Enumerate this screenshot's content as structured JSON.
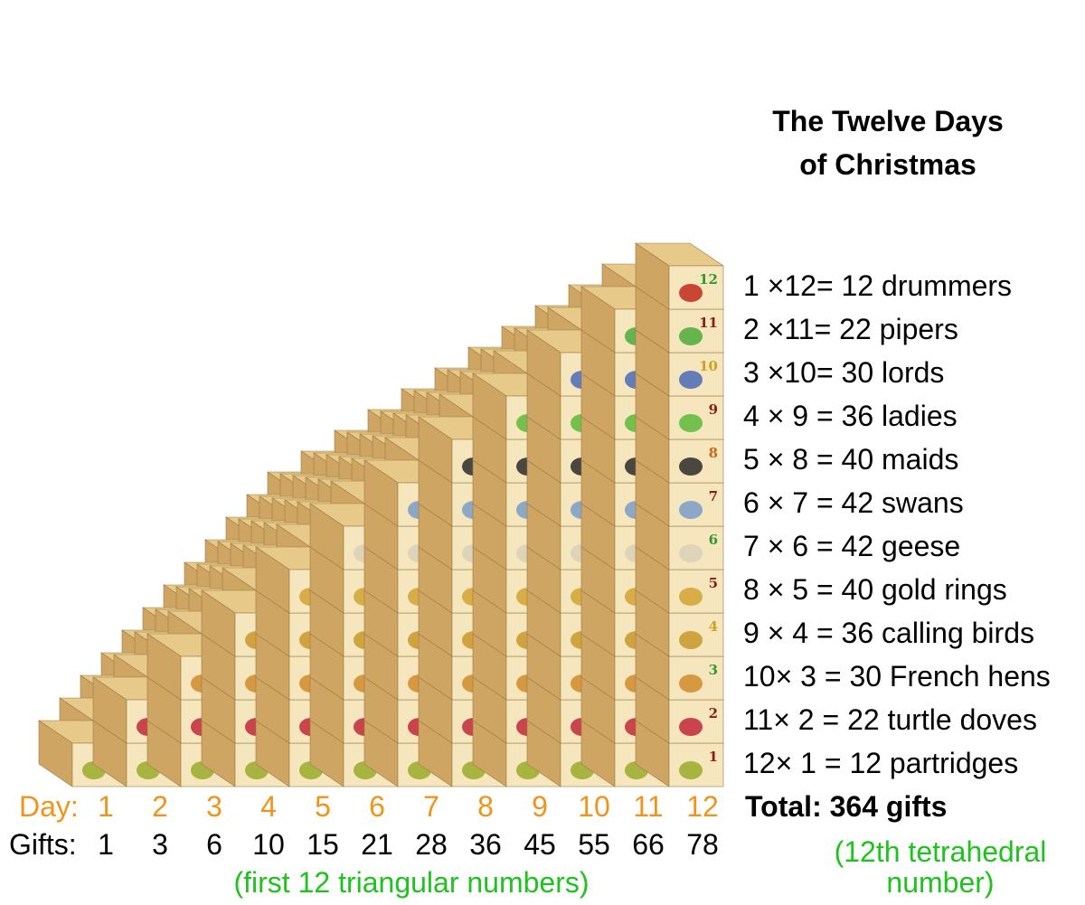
{
  "title_line1": "The Twelve Days",
  "title_line2": "of Christmas",
  "gift_lines": [
    "1 ×12= 12 drummers",
    "2 ×11= 22 pipers",
    "3 ×10= 30 lords",
    "4 × 9 = 36 ladies",
    "5 × 8 = 40 maids",
    "6 × 7 = 42 swans",
    "7 × 6 = 42 geese",
    "8 × 5 = 40 gold rings",
    "9 × 4 = 36 calling birds",
    "10× 3 = 30 French hens",
    "11× 2 = 22 turtle doves",
    "12× 1 = 12 partridges"
  ],
  "total": "Total: 364 gifts",
  "day_label": "Day:",
  "gifts_label": "Gifts:",
  "days": [
    "1",
    "2",
    "3",
    "4",
    "5",
    "6",
    "7",
    "8",
    "9",
    "10",
    "11",
    "12"
  ],
  "gifts": [
    "1",
    "3",
    "6",
    "10",
    "15",
    "21",
    "28",
    "36",
    "45",
    "55",
    "66",
    "78"
  ],
  "note_triangular": "(first 12 triangular numbers)",
  "note_tetra_line1": "(12th tetrahedral",
  "note_tetra_line2": "number)",
  "colors": {
    "day": "#f0941c",
    "note": "#1fc21f",
    "block_front": "#f6e6bd",
    "block_top": "#e7c98a",
    "block_side": "#cfa564",
    "block_edge": "#9c7a45"
  },
  "gift_icons": [
    {
      "day": "1",
      "name": "partridge",
      "color": "#9aaa2a",
      "numcolor": "#8a1d12"
    },
    {
      "day": "2",
      "name": "turtle-doves",
      "color": "#c0283a",
      "numcolor": "#8a1d12"
    },
    {
      "day": "3",
      "name": "french-hens",
      "color": "#d08a2a",
      "numcolor": "#2f9a2f"
    },
    {
      "day": "4",
      "name": "calling-birds",
      "color": "#c8962a",
      "numcolor": "#d0a020"
    },
    {
      "day": "5",
      "name": "gold-rings",
      "color": "#d2a232",
      "numcolor": "#8a1d12"
    },
    {
      "day": "6",
      "name": "geese",
      "color": "#d8d0b8",
      "numcolor": "#2f9a2f"
    },
    {
      "day": "7",
      "name": "swans",
      "color": "#7a9cc8",
      "numcolor": "#8a1d12"
    },
    {
      "day": "8",
      "name": "maids",
      "color": "#2a2a2a",
      "numcolor": "#c46a1a"
    },
    {
      "day": "9",
      "name": "ladies",
      "color": "#5cb83a",
      "numcolor": "#8a1d12"
    },
    {
      "day": "10",
      "name": "lords",
      "color": "#4a6ab8",
      "numcolor": "#d0a020"
    },
    {
      "day": "11",
      "name": "pipers",
      "color": "#4caa3a",
      "numcolor": "#8a1d12"
    },
    {
      "day": "12",
      "name": "drummers",
      "color": "#c02a1a",
      "numcolor": "#2f9a2f"
    }
  ]
}
